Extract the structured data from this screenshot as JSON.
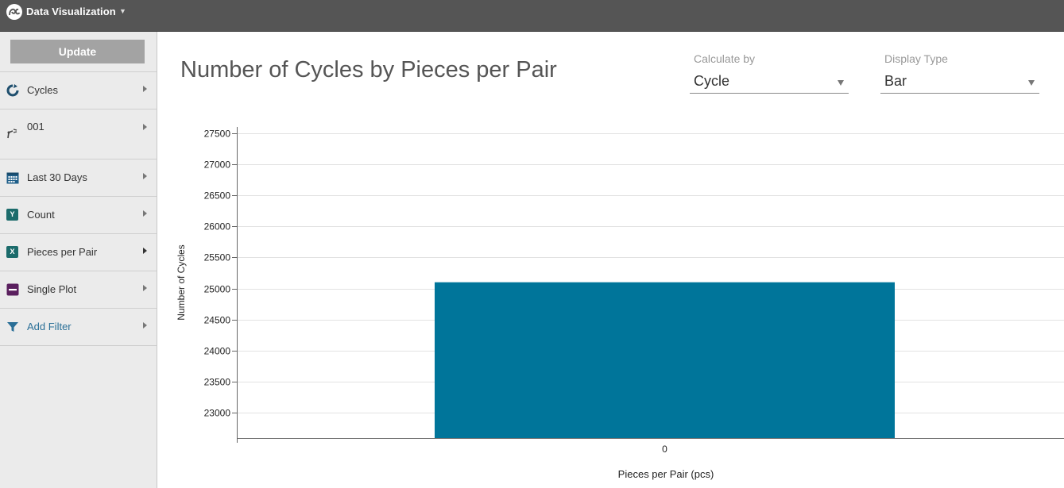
{
  "header": {
    "app_title": "Data Visualization",
    "logo_icon": "pc-logo-icon",
    "menu_icon": "caret-down-icon"
  },
  "sidebar": {
    "update_label": "Update",
    "items": [
      {
        "label": "Cycles",
        "icon": "cycle-refresh-icon"
      },
      {
        "label": "001",
        "icon": "machine-arm-icon"
      },
      {
        "label": "Last 30 Days",
        "icon": "calendar-icon"
      },
      {
        "label": "Count",
        "icon": "y-axis-icon",
        "badge": "Y"
      },
      {
        "label": "Pieces per Pair",
        "icon": "x-axis-icon",
        "badge": "X"
      },
      {
        "label": "Single Plot",
        "icon": "single-plot-icon"
      },
      {
        "label": "Add Filter",
        "icon": "filter-icon"
      }
    ]
  },
  "main": {
    "title": "Number of Cycles by Pieces per Pair",
    "calculate_by": {
      "label": "Calculate by",
      "value": "Cycle"
    },
    "display_type": {
      "label": "Display Type",
      "value": "Bar"
    }
  },
  "colors": {
    "bar": "#00759a",
    "topbar": "#555555",
    "sidebar": "#ebebeb",
    "filter_text": "#2a6f97"
  },
  "chart_data": {
    "type": "bar",
    "title": "",
    "xlabel": "Pieces per Pair (pcs)",
    "ylabel": "Number of Cycles",
    "categories": [
      "0"
    ],
    "values": [
      25100
    ],
    "ylim": [
      22600,
      27600
    ],
    "yticks": [
      "23000",
      "23500",
      "24000",
      "24500",
      "25000",
      "25500",
      "26000",
      "26500",
      "27000",
      "27500"
    ],
    "grid": true,
    "legend": "none"
  }
}
